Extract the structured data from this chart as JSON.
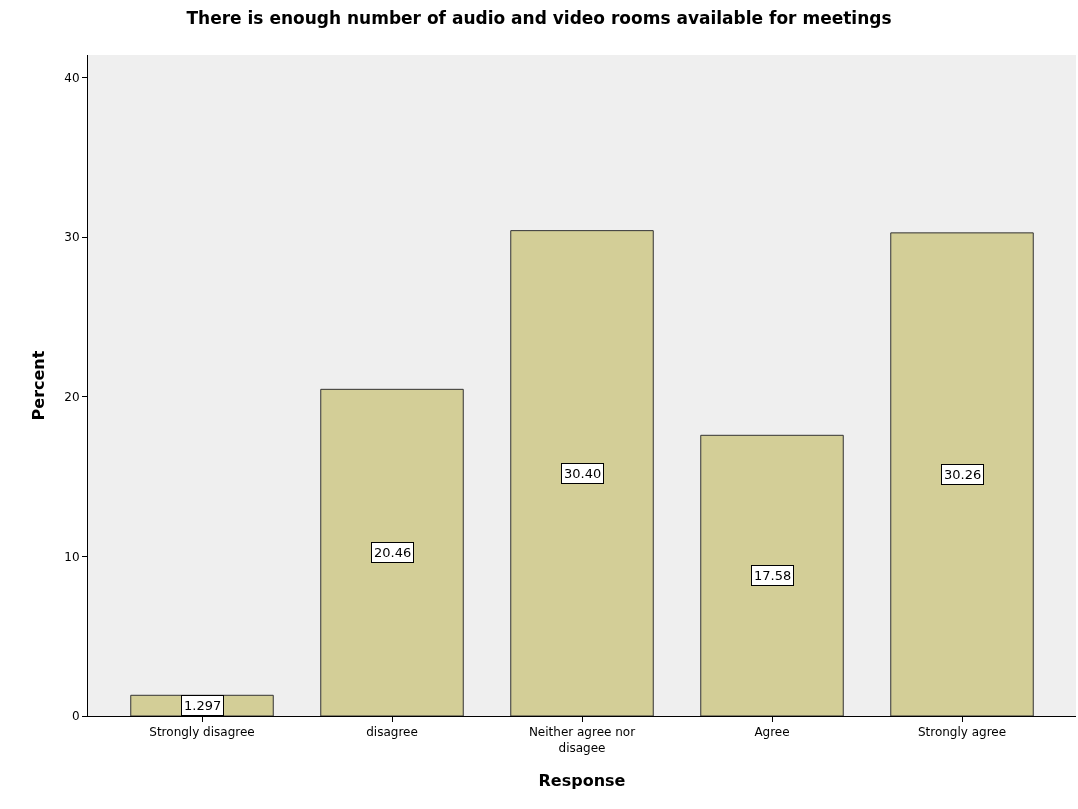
{
  "chart_data": {
    "type": "bar",
    "title": "There is enough number of audio and video rooms available for meetings",
    "xlabel": "Response",
    "ylabel": "Percent",
    "categories": [
      "Strongly disagree",
      "disagree",
      "Neither agree nor disagee",
      "Agree",
      "Strongly agree"
    ],
    "values": [
      1.297,
      20.46,
      30.4,
      17.58,
      30.26
    ],
    "value_labels": [
      "1.297",
      "20.46",
      "30.40",
      "17.58",
      "30.26"
    ],
    "color": "#d3ce97",
    "ylim": [
      0,
      41.4
    ],
    "yticks": [
      0,
      10,
      20,
      30,
      40
    ]
  }
}
